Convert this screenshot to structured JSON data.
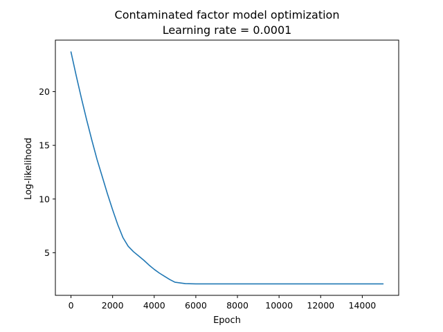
{
  "chart_data": {
    "type": "line",
    "title": "Contaminated factor model optimization",
    "subtitle": "Learning rate = 0.0001",
    "xlabel": "Epoch",
    "ylabel": "Log-likelihood",
    "xlim": [
      -750,
      15750
    ],
    "ylim": [
      1.03,
      24.8
    ],
    "xticks": [
      0,
      2000,
      4000,
      6000,
      8000,
      10000,
      12000,
      14000
    ],
    "yticks": [
      5,
      10,
      15,
      20
    ],
    "grid": false,
    "line_color": "#1f77b4",
    "series": [
      {
        "x": [
          0,
          250,
          500,
          750,
          1000,
          1250,
          1500,
          1750,
          2000,
          2250,
          2500,
          2750,
          3000,
          3250,
          3500,
          3750,
          4000,
          4250,
          4500,
          4750,
          5000,
          5500,
          6000,
          7000,
          8000,
          9000,
          10000,
          11000,
          12000,
          13000,
          14000,
          15000
        ],
        "y": [
          23.7,
          21.5,
          19.4,
          17.4,
          15.5,
          13.7,
          12.1,
          10.5,
          9.0,
          7.6,
          6.4,
          5.6,
          5.1,
          4.7,
          4.3,
          3.85,
          3.45,
          3.1,
          2.8,
          2.5,
          2.25,
          2.12,
          2.1,
          2.1,
          2.1,
          2.1,
          2.1,
          2.1,
          2.1,
          2.1,
          2.1,
          2.1
        ]
      }
    ]
  }
}
